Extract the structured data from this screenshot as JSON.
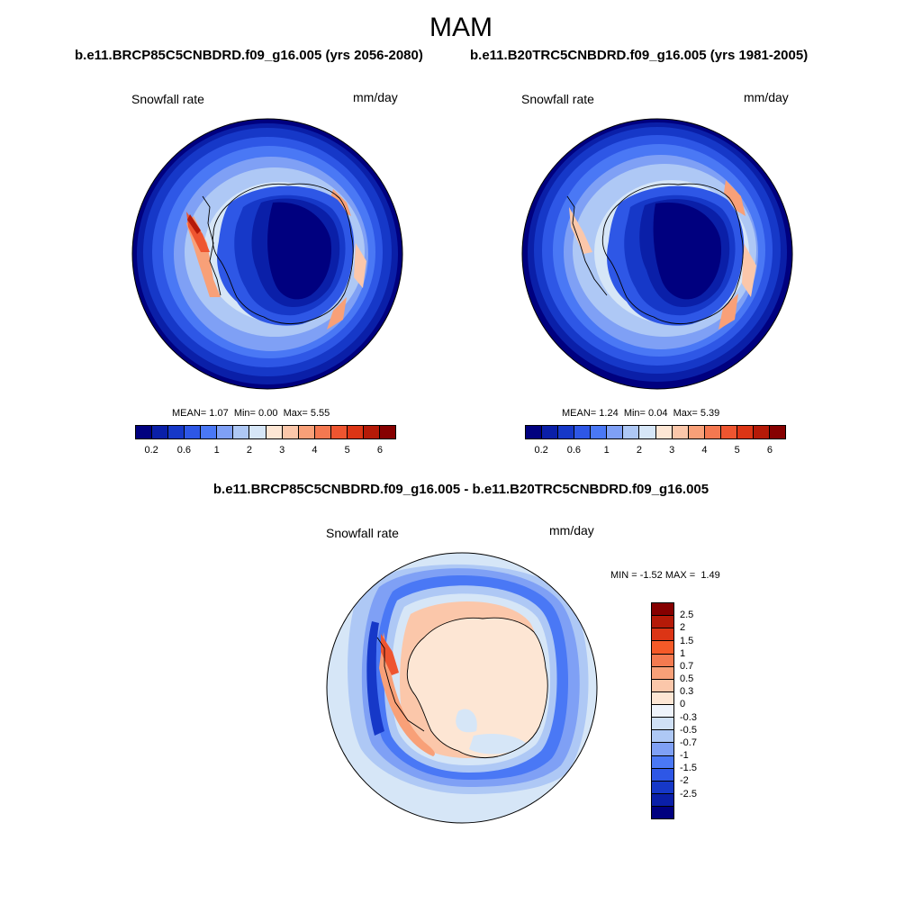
{
  "season": "MAM",
  "panels": {
    "future": {
      "title": "b.e11.BRCP85C5CNBDRD.f09_g16.005 (yrs 2056-2080)",
      "variable": "Snowfall rate",
      "units": "mm/day",
      "stats": {
        "mean": "1.07",
        "min": "0.00",
        "max": "5.55"
      }
    },
    "historical": {
      "title": "b.e11.B20TRC5CNBDRD.f09_g16.005 (yrs 1981-2005)",
      "variable": "Snowfall rate",
      "units": "mm/day",
      "stats": {
        "mean": "1.24",
        "min": "0.04",
        "max": "5.39"
      }
    },
    "difference": {
      "title": "b.e11.BRCP85C5CNBDRD.f09_g16.005 - b.e11.B20TRC5CNBDRD.f09_g16.005",
      "variable": "Snowfall rate",
      "units": "mm/day",
      "stats": {
        "min": "-1.52",
        "max": "1.49"
      }
    }
  },
  "stat_labels": {
    "mean": "MEAN=",
    "min": "Min=",
    "max": "Max=",
    "min_upper": "MIN =",
    "max_upper": "MAX ="
  },
  "colorbar_abs": {
    "colors": [
      "#00007f",
      "#0a1fa8",
      "#1638c8",
      "#2e57e6",
      "#4a78f5",
      "#7fa0f5",
      "#aec8f5",
      "#d6e6f7",
      "#fde6d4",
      "#fbc7aa",
      "#f8a078",
      "#f47850",
      "#ee5530",
      "#dc3515",
      "#b51a08",
      "#860000"
    ],
    "tick_labels": [
      "0.2",
      "0.6",
      "1",
      "2",
      "3",
      "4",
      "5",
      "6"
    ]
  },
  "colorbar_diff": {
    "colors_top_to_bottom": [
      "#860000",
      "#b51a08",
      "#dc3515",
      "#f55a28",
      "#f47a50",
      "#f8a078",
      "#fbc7aa",
      "#fde6d4",
      "#eef3fb",
      "#cfe0f6",
      "#aec8f5",
      "#7fa0f5",
      "#4a78f5",
      "#2e57e6",
      "#1638c8",
      "#0a1fa8",
      "#00007f"
    ],
    "tick_labels": [
      "2.5",
      "2",
      "1.5",
      "1",
      "0.7",
      "0.5",
      "0.3",
      "0",
      "-0.3",
      "-0.5",
      "-0.7",
      "-1",
      "-1.5",
      "-2",
      "-2.5"
    ]
  }
}
